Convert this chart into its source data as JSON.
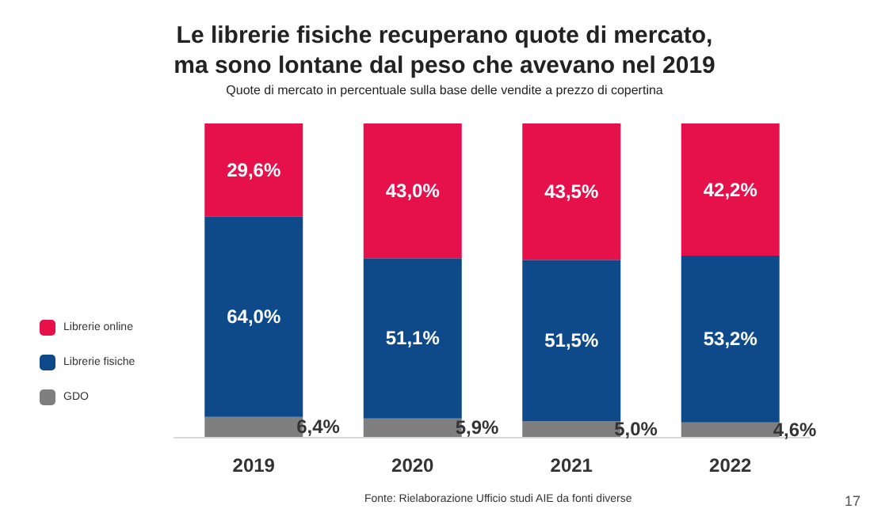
{
  "chart_data": {
    "type": "bar",
    "stacked": true,
    "title": "Le librerie fisiche recuperano quote di mercato,\nma sono lontane dal peso che avevano nel 2019",
    "subtitle": "Quote di mercato in percentuale sulla base delle vendite a prezzo di copertina",
    "categories": [
      "2019",
      "2020",
      "2021",
      "2022"
    ],
    "series": [
      {
        "name": "GDO",
        "color": "#7f7f7f",
        "values": [
          6.4,
          5.9,
          5.0,
          4.6
        ],
        "value_labels": [
          "6,4%",
          "5,9%",
          "5,0%",
          "4,6%"
        ]
      },
      {
        "name": "Librerie fisiche",
        "color": "#0e4a8a",
        "values": [
          64.0,
          51.1,
          51.5,
          53.2
        ],
        "value_labels": [
          "64,0%",
          "51,1%",
          "51,5%",
          "53,2%"
        ]
      },
      {
        "name": "Librerie online",
        "color": "#e6114b",
        "values": [
          29.6,
          43.0,
          43.5,
          42.2
        ],
        "value_labels": [
          "29,6%",
          "43,0%",
          "43,5%",
          "42,2%"
        ]
      }
    ],
    "legend": "bottom left",
    "annotations": [
      "Fonte: Rielaborazione Ufficio studi AIE da fonti diverse",
      "17"
    ]
  }
}
